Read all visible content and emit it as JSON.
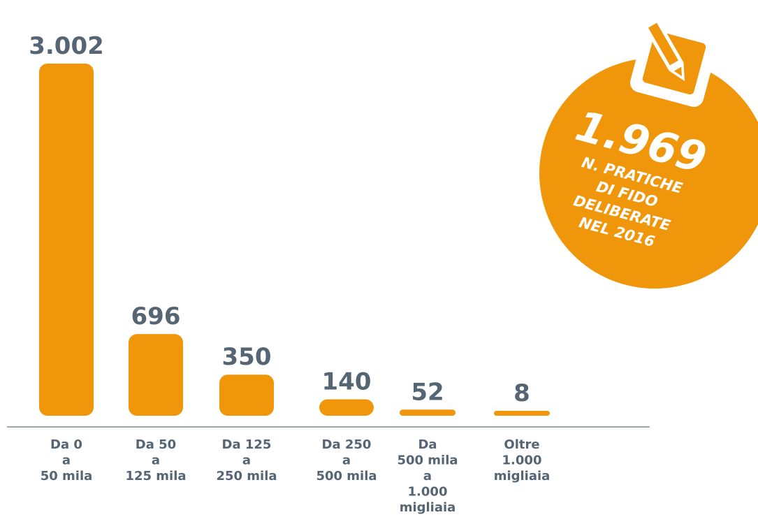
{
  "chart_data": {
    "type": "bar",
    "categories": [
      [
        "Da 0",
        "a",
        "50 mila"
      ],
      [
        "Da 50",
        "a",
        "125 mila"
      ],
      [
        "Da 125",
        "a",
        "250 mila"
      ],
      [
        "Da 250",
        "a",
        "500 mila"
      ],
      [
        "Da",
        "500 mila",
        "a",
        "1.000",
        "migliaia"
      ],
      [
        "Oltre",
        "1.000",
        "migliaia"
      ]
    ],
    "values": [
      3002,
      696,
      350,
      140,
      52,
      8
    ],
    "value_labels": [
      "3.002",
      "696",
      "350",
      "140",
      "52",
      "8"
    ],
    "ylim": [
      0,
      3002
    ],
    "grid": false,
    "legend": "none"
  },
  "badge": {
    "number": "1.969",
    "lines": [
      "N. PRATICHE",
      "DI FIDO",
      "DELIBERATE",
      "NEL 2016"
    ],
    "icon": "pencil-edit-icon"
  },
  "colors": {
    "bar": "#f0960b",
    "text": "#566573",
    "axis": "#7f8c8d",
    "badge": "#f0960b",
    "badge_text": "#ffffff"
  }
}
